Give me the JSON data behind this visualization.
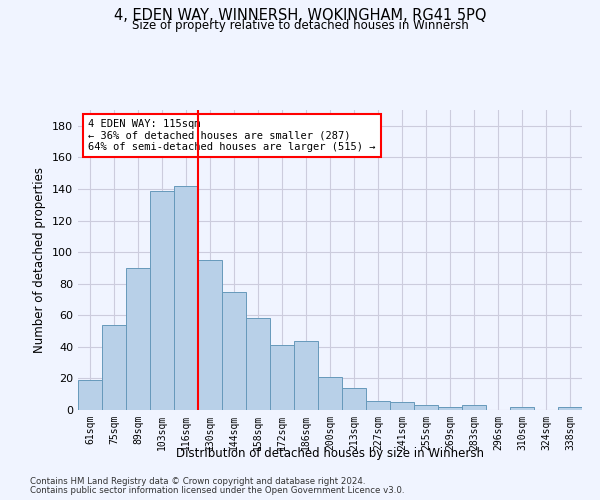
{
  "title": "4, EDEN WAY, WINNERSH, WOKINGHAM, RG41 5PQ",
  "subtitle": "Size of property relative to detached houses in Winnersh",
  "xlabel": "Distribution of detached houses by size in Winnersh",
  "ylabel": "Number of detached properties",
  "bar_labels": [
    "61sqm",
    "75sqm",
    "89sqm",
    "103sqm",
    "116sqm",
    "130sqm",
    "144sqm",
    "158sqm",
    "172sqm",
    "186sqm",
    "200sqm",
    "213sqm",
    "227sqm",
    "241sqm",
    "255sqm",
    "269sqm",
    "283sqm",
    "296sqm",
    "310sqm",
    "324sqm",
    "338sqm"
  ],
  "bar_values": [
    19,
    54,
    90,
    139,
    142,
    95,
    75,
    58,
    41,
    44,
    21,
    14,
    6,
    5,
    3,
    2,
    3,
    0,
    2,
    0,
    2
  ],
  "bar_color": "#b8d0e8",
  "bar_edge_color": "#6699bb",
  "vline_x": 4.5,
  "vline_color": "red",
  "annotation_text": "4 EDEN WAY: 115sqm\n← 36% of detached houses are smaller (287)\n64% of semi-detached houses are larger (515) →",
  "annotation_box_color": "white",
  "annotation_box_edge": "red",
  "ylim": [
    0,
    190
  ],
  "yticks": [
    0,
    20,
    40,
    60,
    80,
    100,
    120,
    140,
    160,
    180
  ],
  "grid_color": "#ccccdd",
  "background_color": "#f0f4ff",
  "footer1": "Contains HM Land Registry data © Crown copyright and database right 2024.",
  "footer2": "Contains public sector information licensed under the Open Government Licence v3.0."
}
